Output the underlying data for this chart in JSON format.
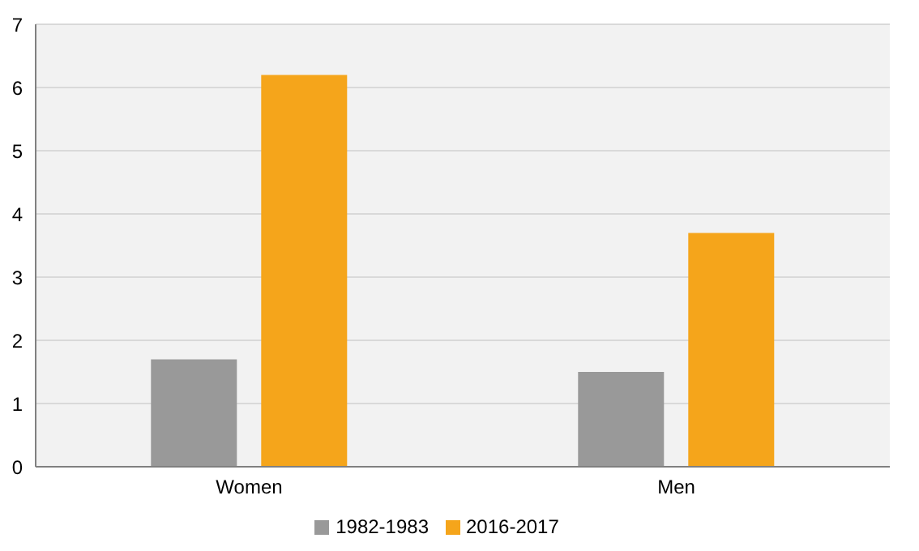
{
  "chart_data": {
    "type": "bar",
    "categories": [
      "Women",
      "Men"
    ],
    "series": [
      {
        "name": "1982-1983",
        "color": "#999999",
        "values": [
          1.7,
          1.5
        ]
      },
      {
        "name": "2016-2017",
        "color": "#f5a51b",
        "values": [
          6.2,
          3.7
        ]
      }
    ],
    "ylim": [
      0,
      7
    ],
    "yticks": [
      0,
      1,
      2,
      3,
      4,
      5,
      6,
      7
    ],
    "grid": "y",
    "legend": "bottom"
  }
}
